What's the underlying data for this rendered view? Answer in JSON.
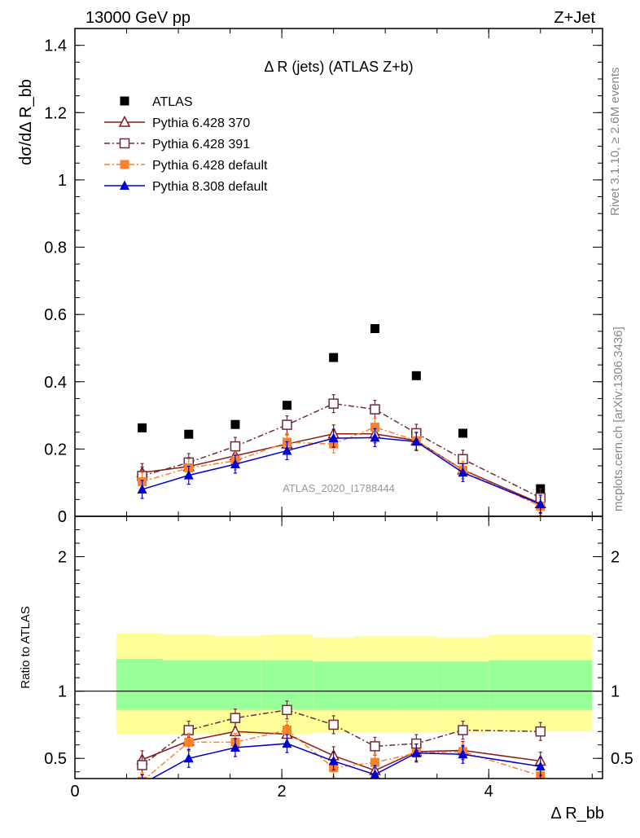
{
  "header": {
    "left": "13000 GeV pp",
    "right": "Z+Jet"
  },
  "side_labels": {
    "rivet": "Rivet 3.1.10, ≥ 2.6M events",
    "mcplots": "mcplots.cern.ch [arXiv:1306.3436]"
  },
  "chart_data": [
    {
      "type": "scatter",
      "panel": "main",
      "title": "Δ R (jets) (ATLAS Z+b)",
      "watermark": "ATLAS_2020_I1788444",
      "ylabel": "dσ/dΔ R_bb",
      "ylim": [
        0,
        1.45
      ],
      "y_ticks": [
        0,
        0.2,
        0.4,
        0.6,
        0.8,
        1,
        1.2,
        1.4
      ],
      "y_tick_labels": [
        "0",
        "0.2",
        "0.4",
        "0.6",
        "0.8",
        "1",
        "1.2",
        "1.4"
      ],
      "legend_position": "top-left",
      "x": [
        0.65,
        1.1,
        1.55,
        2.05,
        2.5,
        2.9,
        3.3,
        3.75,
        4.5
      ],
      "series": [
        {
          "name": "ATLAS",
          "color": "#000000",
          "marker": "square",
          "line": "none",
          "values": [
            0.263,
            0.244,
            0.273,
            0.33,
            0.472,
            0.558,
            0.418,
            0.247,
            0.082
          ]
        },
        {
          "name": "Pythia 6.428 370",
          "color": "#8b1a1a",
          "marker": "triangle-open",
          "line": "solid",
          "values": [
            0.13,
            0.148,
            0.18,
            0.215,
            0.245,
            0.245,
            0.225,
            0.138,
            0.038
          ]
        },
        {
          "name": "Pythia 6.428 391",
          "color": "#6b2c3c",
          "marker": "square-open",
          "line": "dashdot",
          "values": [
            0.12,
            0.16,
            0.208,
            0.272,
            0.335,
            0.318,
            0.247,
            0.17,
            0.055
          ]
        },
        {
          "name": "Pythia 6.428 default",
          "color": "#ff7f2a",
          "marker": "square",
          "line": "dashdot",
          "values": [
            0.103,
            0.144,
            0.165,
            0.22,
            0.215,
            0.265,
            0.225,
            0.137,
            0.03
          ]
        },
        {
          "name": "Pythia 8.308 default",
          "color": "#0000d0",
          "marker": "triangle",
          "line": "solid",
          "values": [
            0.08,
            0.122,
            0.155,
            0.195,
            0.232,
            0.234,
            0.222,
            0.13,
            0.036
          ]
        }
      ]
    },
    {
      "type": "line",
      "panel": "ratio",
      "ylabel": "Ratio to ATLAS",
      "xlabel": "Δ R_bb",
      "xlim": [
        0,
        5.1
      ],
      "ylim": [
        0.35,
        2.3
      ],
      "x_ticks": [
        0,
        2,
        4
      ],
      "x_tick_labels": [
        "0",
        "2",
        "4"
      ],
      "y_ticks": [
        0.5,
        1,
        2
      ],
      "y_tick_labels": [
        "0.5",
        "1",
        "2"
      ],
      "reference": 1,
      "bands": {
        "bin_edges": [
          0.4,
          0.85,
          1.35,
          1.8,
          2.3,
          2.7,
          3.1,
          3.5,
          4.0,
          5.0
        ],
        "outer_color": "#ffff99",
        "inner_color": "#99ff99",
        "outer_low": [
          0.68,
          0.68,
          0.68,
          0.68,
          0.69,
          0.69,
          0.69,
          0.69,
          0.7
        ],
        "outer_high": [
          1.43,
          1.42,
          1.41,
          1.42,
          1.4,
          1.41,
          1.41,
          1.4,
          1.42
        ],
        "inner_low": [
          0.86,
          0.86,
          0.86,
          0.86,
          0.86,
          0.86,
          0.86,
          0.86,
          0.86
        ],
        "inner_high": [
          1.24,
          1.23,
          1.23,
          1.23,
          1.22,
          1.22,
          1.22,
          1.22,
          1.23
        ]
      },
      "x": [
        0.65,
        1.1,
        1.55,
        2.05,
        2.5,
        2.9,
        3.3,
        3.75,
        4.5
      ],
      "series": [
        {
          "name": "Pythia 6.428 370",
          "color": "#8b1a1a",
          "marker": "triangle-open",
          "line": "solid",
          "values": [
            0.49,
            0.63,
            0.7,
            0.68,
            0.52,
            0.41,
            0.55,
            0.56,
            0.48
          ]
        },
        {
          "name": "Pythia 6.428 391",
          "color": "#6b2c3c",
          "marker": "square-open",
          "line": "dashdot",
          "values": [
            0.45,
            0.71,
            0.8,
            0.86,
            0.75,
            0.59,
            0.61,
            0.71,
            0.7
          ]
        },
        {
          "name": "Pythia 6.428 default",
          "color": "#ff7f2a",
          "marker": "square",
          "line": "dashdot",
          "values": [
            0.33,
            0.62,
            0.62,
            0.71,
            0.43,
            0.47,
            0.54,
            0.55,
            0.37
          ]
        },
        {
          "name": "Pythia 8.308 default",
          "color": "#0000d0",
          "marker": "triangle",
          "line": "solid",
          "values": [
            0.31,
            0.5,
            0.58,
            0.61,
            0.48,
            0.38,
            0.54,
            0.53,
            0.44
          ]
        }
      ]
    }
  ]
}
